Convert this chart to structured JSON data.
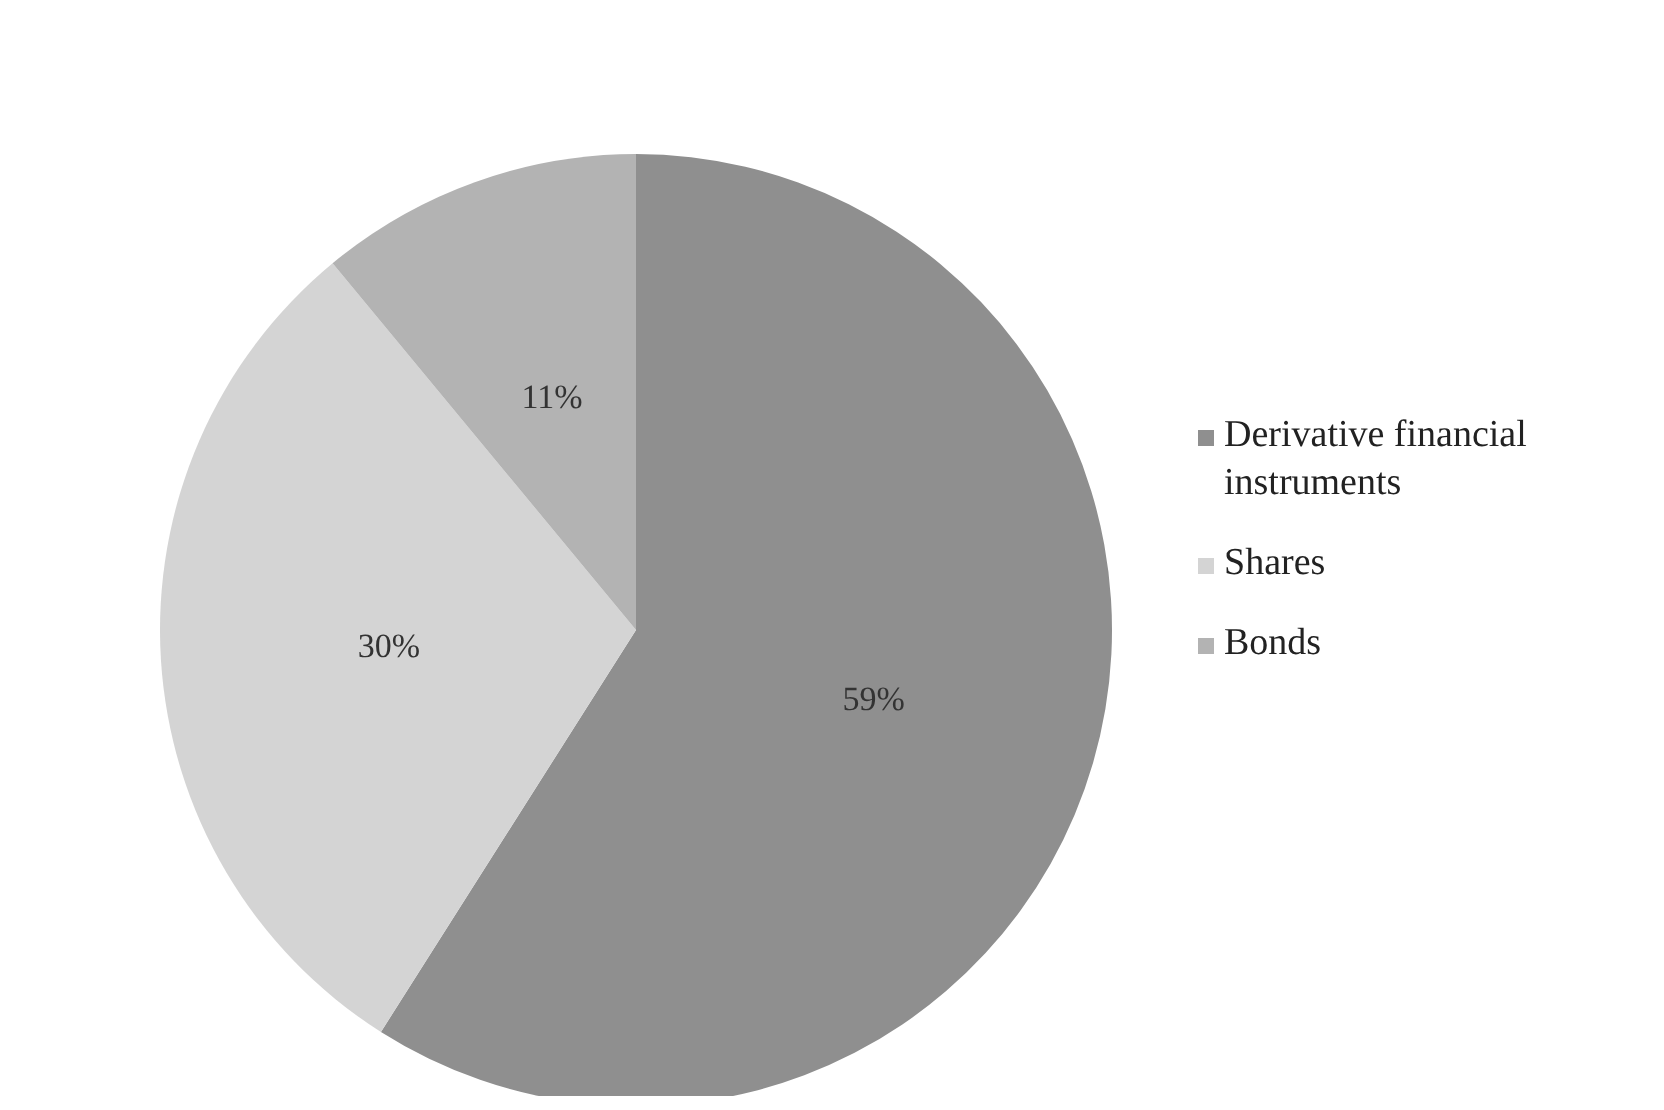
{
  "chart_data": {
    "type": "pie",
    "categories": [
      "Derivative financial instruments",
      "Shares",
      "Bonds"
    ],
    "values": [
      59,
      30,
      11
    ],
    "value_labels": [
      "59%",
      "30%",
      "11%"
    ],
    "colors": [
      "#8f8f8f",
      "#d4d4d4",
      "#b3b3b3"
    ],
    "legend": "right"
  }
}
